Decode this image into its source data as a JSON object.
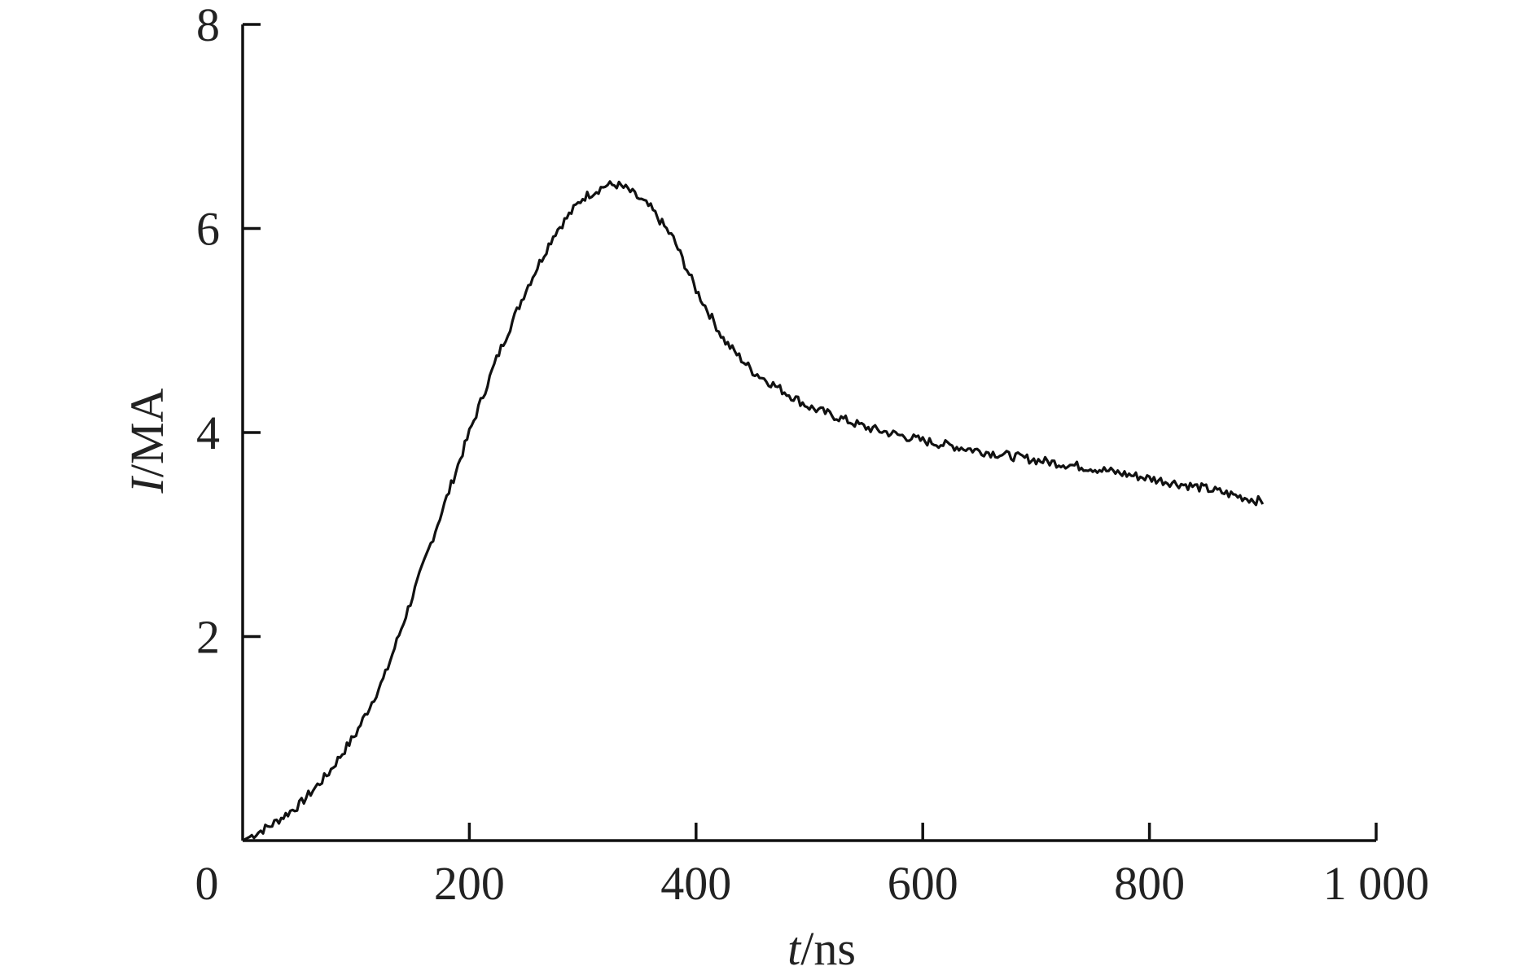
{
  "chart_data": {
    "type": "line",
    "title": "",
    "xlabel_var": "t",
    "xlabel_unit": "/ns",
    "ylabel_var": "I",
    "ylabel_unit": "/MA",
    "xlim": [
      0,
      1000
    ],
    "ylim": [
      0,
      8
    ],
    "xticks": [
      0,
      200,
      400,
      600,
      800,
      1000
    ],
    "xtick_labels": [
      "0",
      "200",
      "400",
      "600",
      "800",
      "1 000"
    ],
    "yticks": [
      2,
      4,
      6,
      8
    ],
    "ytick_labels": [
      "2",
      "4",
      "6",
      "8"
    ],
    "grid": false,
    "legend": "none",
    "color": "#111111",
    "series": [
      {
        "x": [
          0,
          25,
          50,
          75,
          100,
          125,
          150,
          175,
          200,
          225,
          250,
          275,
          300,
          320,
          330,
          340,
          360,
          380,
          400,
          425,
          450,
          475,
          500,
          550,
          600,
          650,
          700,
          750,
          800,
          850,
          900
        ],
        "values": [
          0.0,
          0.15,
          0.35,
          0.65,
          1.05,
          1.6,
          2.4,
          3.2,
          4.0,
          4.75,
          5.4,
          5.95,
          6.3,
          6.42,
          6.43,
          6.38,
          6.2,
          5.9,
          5.4,
          4.9,
          4.6,
          4.42,
          4.25,
          4.05,
          3.92,
          3.82,
          3.73,
          3.65,
          3.55,
          3.45,
          3.32
        ]
      }
    ]
  }
}
